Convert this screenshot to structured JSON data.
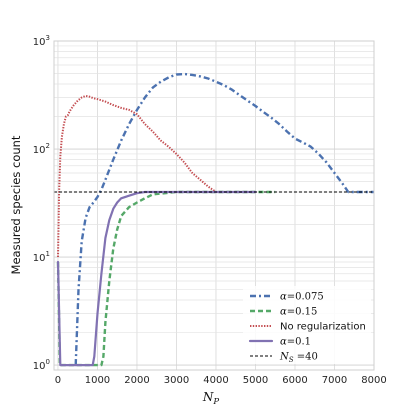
{
  "chart_data": {
    "type": "line",
    "xlabel": "N",
    "xlabel_sub": "P",
    "ylabel": "Measured species count",
    "xlim": [
      -100,
      8000
    ],
    "ylim": [
      0.9,
      1000
    ],
    "yscale": "log",
    "grid": true,
    "legend_position": "lower-right",
    "x_ticks": [
      0,
      1000,
      2000,
      3000,
      4000,
      5000,
      6000,
      7000,
      8000
    ],
    "x_tick_labels": [
      "0",
      "1000",
      "2000",
      "3000",
      "4000",
      "5000",
      "6000",
      "7000",
      "8000"
    ],
    "y_ticks": [
      1,
      10,
      100,
      1000
    ],
    "y_tick_labels": [
      {
        "base": "10",
        "exp": "0"
      },
      {
        "base": "10",
        "exp": "1"
      },
      {
        "base": "10",
        "exp": "2"
      },
      {
        "base": "10",
        "exp": "3"
      }
    ],
    "series": [
      {
        "name": "α=0.075",
        "legend": {
          "symbol": "α",
          "rest": "=0.075"
        },
        "color": "#4c72b0",
        "style": "dashdot",
        "x": [
          450,
          520,
          600,
          700,
          800,
          900,
          1000,
          1100,
          1200,
          1400,
          1600,
          1800,
          2000,
          2200,
          2400,
          2600,
          2800,
          3000,
          3200,
          3400,
          3600,
          3800,
          4000,
          4200,
          4400,
          4600,
          4800,
          5000,
          5200,
          5400,
          5600,
          5800,
          6000,
          6200,
          6400,
          6600,
          6800,
          7000,
          7200,
          7350,
          7500,
          8000
        ],
        "y": [
          1,
          5,
          14,
          23,
          29,
          32,
          36,
          42,
          52,
          80,
          120,
          170,
          230,
          300,
          370,
          420,
          460,
          490,
          495,
          485,
          470,
          450,
          420,
          390,
          355,
          315,
          280,
          250,
          220,
          195,
          170,
          145,
          125,
          115,
          105,
          90,
          75,
          60,
          48,
          40,
          40,
          40
        ]
      },
      {
        "name": "α=0.15",
        "legend": {
          "symbol": "α",
          "rest": "=0.15"
        },
        "color": "#55a868",
        "style": "dashed",
        "x": [
          0,
          50,
          100,
          1000,
          1100,
          1150,
          1200,
          1300,
          1400,
          1500,
          1600,
          1800,
          2000,
          2200,
          2400,
          3000,
          4000,
          5000,
          5500
        ],
        "y": [
          9,
          1,
          1,
          1,
          1,
          1.2,
          2.5,
          6,
          12,
          18,
          24,
          29,
          32,
          35,
          38,
          40,
          40,
          40,
          40
        ]
      },
      {
        "name": "No regularization",
        "legend": {
          "text": "No regularization"
        },
        "color": "#c44e52",
        "style": "dotted",
        "x": [
          0,
          30,
          60,
          100,
          150,
          200,
          250,
          300,
          400,
          500,
          600,
          700,
          800,
          900,
          1000,
          1200,
          1400,
          1600,
          1800,
          2000,
          2200,
          2400,
          2600,
          2800,
          3000,
          3200,
          3400,
          3600,
          3800,
          4000
        ],
        "y": [
          10,
          40,
          85,
          130,
          170,
          200,
          205,
          225,
          255,
          280,
          300,
          310,
          305,
          295,
          290,
          275,
          255,
          240,
          230,
          210,
          170,
          145,
          120,
          105,
          90,
          75,
          60,
          52,
          45,
          40
        ]
      },
      {
        "name": "α=0.1",
        "legend": {
          "symbol": "α",
          "rest": "=0.1"
        },
        "color": "#8172b2",
        "style": "solid",
        "x": [
          0,
          60,
          100,
          880,
          920,
          1000,
          1100,
          1200,
          1300,
          1400,
          1500,
          1600,
          1800,
          2000,
          2200,
          2400,
          3000,
          4000,
          5000
        ],
        "y": [
          9,
          1,
          1,
          1,
          1.2,
          3,
          7,
          15,
          22,
          28,
          32,
          35,
          37,
          39,
          40,
          40,
          40,
          40,
          40
        ]
      },
      {
        "name": "N_S =40",
        "legend": {
          "symbol": "N",
          "sub": "S",
          "rest": " =40"
        },
        "color": "#000000",
        "style": "dashed-thin",
        "x": [
          -100,
          8000
        ],
        "y": [
          40,
          40
        ]
      }
    ]
  }
}
